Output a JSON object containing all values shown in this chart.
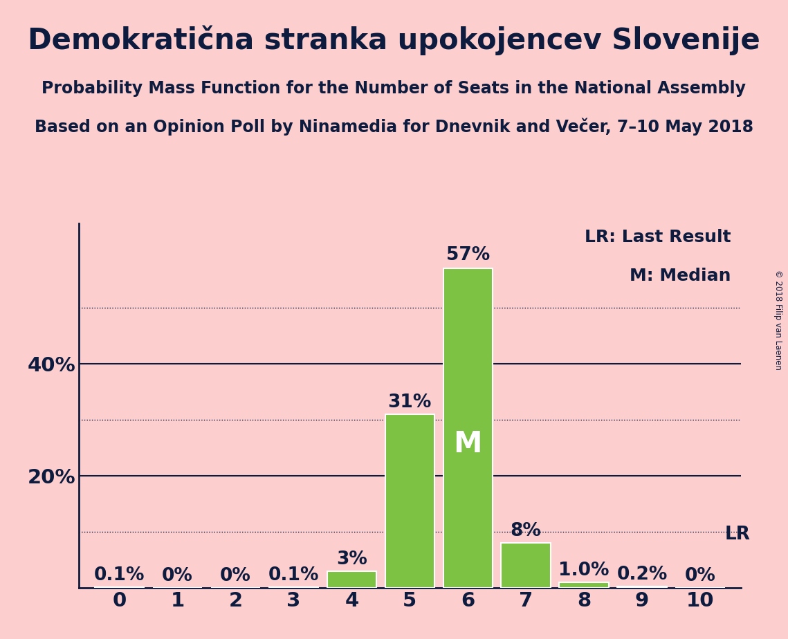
{
  "title": "Demokratična stranka upokojencev Slovenije",
  "subtitle1": "Probability Mass Function for the Number of Seats in the National Assembly",
  "subtitle2": "Based on an Opinion Poll by Ninamedia for Dnevnik and Večer, 7–10 May 2018",
  "copyright": "© 2018 Filip van Laenen",
  "categories": [
    0,
    1,
    2,
    3,
    4,
    5,
    6,
    7,
    8,
    9,
    10
  ],
  "values": [
    0.1,
    0.0,
    0.0,
    0.1,
    3.0,
    31.0,
    57.0,
    8.0,
    1.0,
    0.2,
    0.0
  ],
  "bar_labels": [
    "0.1%",
    "0%",
    "0%",
    "0.1%",
    "3%",
    "31%",
    "57%",
    "8%",
    "1.0%",
    "0.2%",
    "0%"
  ],
  "bar_color": "#7dc242",
  "background_color": "#fccece",
  "text_color": "#0d1b3e",
  "median_bar": 6,
  "median_label": "M",
  "lr_label": "LR",
  "legend_lr": "LR: Last Result",
  "legend_m": "M: Median",
  "ylim": [
    0,
    65
  ],
  "dotted_ticks": [
    10,
    30,
    50
  ],
  "solid_ticks": [
    20,
    40
  ],
  "title_fontsize": 30,
  "subtitle_fontsize": 17,
  "bar_label_fontsize": 19,
  "axis_label_fontsize": 21,
  "legend_fontsize": 18
}
